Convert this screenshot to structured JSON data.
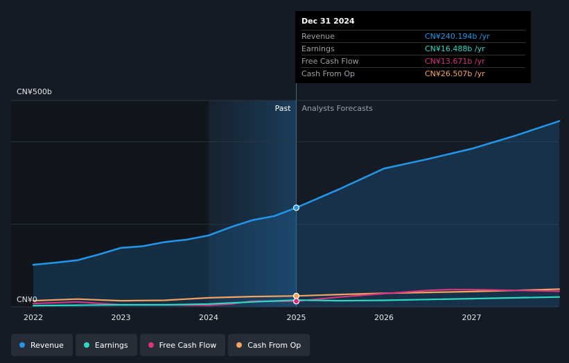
{
  "chart_data": {
    "type": "line",
    "y_top_label": "CN¥500b",
    "y_zero_label": "CN¥0",
    "ylim": [
      0,
      500
    ],
    "xlim": [
      2022,
      2028
    ],
    "x_ticks": [
      "2022",
      "2023",
      "2024",
      "2025",
      "2026",
      "2027"
    ],
    "past_label": "Past",
    "forecast_label": "Analysts Forecasts",
    "series": [
      {
        "name": "Revenue",
        "color": "#2394e6",
        "points": [
          [
            2022.0,
            102
          ],
          [
            2022.25,
            107
          ],
          [
            2022.5,
            113
          ],
          [
            2022.75,
            127
          ],
          [
            2023.0,
            143
          ],
          [
            2023.25,
            147
          ],
          [
            2023.5,
            157
          ],
          [
            2023.75,
            163
          ],
          [
            2024.0,
            173
          ],
          [
            2024.25,
            193
          ],
          [
            2024.5,
            210
          ],
          [
            2024.75,
            220
          ],
          [
            2025.0,
            240.2
          ],
          [
            2025.5,
            286
          ],
          [
            2026.0,
            335
          ],
          [
            2026.5,
            358
          ],
          [
            2027.0,
            383
          ],
          [
            2027.5,
            415
          ],
          [
            2028.0,
            450
          ]
        ]
      },
      {
        "name": "Earnings",
        "color": "#2ed9c3",
        "points": [
          [
            2022.0,
            3
          ],
          [
            2022.5,
            4
          ],
          [
            2023.0,
            5
          ],
          [
            2023.5,
            5
          ],
          [
            2024.0,
            7
          ],
          [
            2024.5,
            12
          ],
          [
            2025.0,
            16.5
          ],
          [
            2025.5,
            15
          ],
          [
            2026.0,
            16
          ],
          [
            2026.5,
            18
          ],
          [
            2027.0,
            20
          ],
          [
            2027.5,
            22
          ],
          [
            2028.0,
            24
          ]
        ]
      },
      {
        "name": "Free Cash Flow",
        "color": "#d7337f",
        "points": [
          [
            2022.0,
            8
          ],
          [
            2022.5,
            12
          ],
          [
            2023.0,
            5
          ],
          [
            2023.5,
            5
          ],
          [
            2024.0,
            4
          ],
          [
            2024.25,
            7
          ],
          [
            2024.5,
            14
          ],
          [
            2025.0,
            13.7
          ],
          [
            2025.5,
            24
          ],
          [
            2026.0,
            32
          ],
          [
            2026.5,
            40
          ],
          [
            2026.75,
            42
          ],
          [
            2027.0,
            42
          ],
          [
            2027.5,
            40
          ],
          [
            2028.0,
            38
          ]
        ]
      },
      {
        "name": "Cash From Op",
        "color": "#f4a460",
        "points": [
          [
            2022.0,
            15
          ],
          [
            2022.5,
            19
          ],
          [
            2023.0,
            15
          ],
          [
            2023.5,
            16
          ],
          [
            2024.0,
            22
          ],
          [
            2024.5,
            25
          ],
          [
            2025.0,
            26.5
          ],
          [
            2025.5,
            30
          ],
          [
            2026.0,
            33
          ],
          [
            2026.5,
            35
          ],
          [
            2027.0,
            37
          ],
          [
            2027.5,
            40
          ],
          [
            2028.0,
            43
          ]
        ]
      }
    ],
    "tooltip": {
      "date": "Dec 31 2024",
      "rows": [
        {
          "label": "Revenue",
          "value": "CN¥240.194b /yr",
          "color": "#2394e6"
        },
        {
          "label": "Earnings",
          "value": "CN¥16.488b /yr",
          "color": "#2ed9c3"
        },
        {
          "label": "Free Cash Flow",
          "value": "CN¥13.671b /yr",
          "color": "#d7337f"
        },
        {
          "label": "Cash From Op",
          "value": "CN¥26.507b /yr",
          "color": "#f4a460"
        }
      ]
    },
    "legend_placement": "bottom-left",
    "grid": true
  }
}
